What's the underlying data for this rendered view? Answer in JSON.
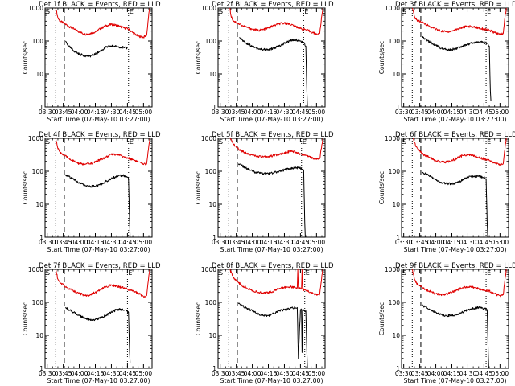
{
  "colors": {
    "events": "#000000",
    "lld": "#e00000",
    "axes": "#000000",
    "background": "#ffffff"
  },
  "common": {
    "ylabel": "Counts/sec",
    "xlabel": "Start Time (07-May-10 03:27:00)",
    "x_ticks": [
      "03:30",
      "03:45",
      "04:00",
      "04:15",
      "04:30",
      "04:45",
      "05:00"
    ],
    "y_ticks": [
      "1",
      "10",
      "100",
      "1000"
    ],
    "flag_S": "S",
    "flag_E": "E"
  },
  "chart_data": [
    {
      "type": "line",
      "title": "Det 1f BLACK = Events, RED = LLD",
      "x_unit": "minutes after 03:30",
      "xlim": [
        -2,
        98
      ],
      "ylim": [
        1,
        1000
      ],
      "yscale": "log",
      "markers": {
        "dotted": [
          8,
          76
        ],
        "dashed": 16
      },
      "series": [
        {
          "name": "LLD",
          "color": "red",
          "x": [
            8,
            10,
            12,
            16,
            20,
            25,
            30,
            35,
            40,
            45,
            50,
            55,
            60,
            65,
            70,
            72,
            75,
            80,
            85,
            90,
            93,
            95,
            96
          ],
          "y": [
            1000,
            500,
            400,
            340,
            280,
            230,
            190,
            160,
            170,
            190,
            240,
            290,
            320,
            300,
            260,
            250,
            240,
            180,
            140,
            130,
            150,
            700,
            1000
          ]
        },
        {
          "name": "Events",
          "color": "black",
          "x": [
            17,
            18,
            20,
            25,
            30,
            35,
            40,
            45,
            50,
            55,
            60,
            65,
            70,
            72,
            75
          ],
          "y": [
            100,
            90,
            70,
            50,
            40,
            36,
            35,
            40,
            50,
            65,
            70,
            68,
            65,
            62,
            60
          ]
        }
      ]
    },
    {
      "type": "line",
      "title": "Det 2f BLACK = Events, RED = LLD",
      "x_unit": "minutes after 03:30",
      "xlim": [
        -2,
        98
      ],
      "ylim": [
        1,
        1000
      ],
      "yscale": "log",
      "markers": {
        "dotted": [
          8,
          78
        ],
        "dashed": 16
      },
      "series": [
        {
          "name": "LLD",
          "color": "red",
          "x": [
            9,
            10,
            12,
            16,
            20,
            25,
            30,
            35,
            40,
            45,
            50,
            55,
            60,
            65,
            70,
            75,
            80,
            85,
            90,
            93,
            95,
            96
          ],
          "y": [
            1000,
            600,
            420,
            350,
            300,
            260,
            230,
            210,
            220,
            250,
            290,
            330,
            350,
            330,
            280,
            240,
            220,
            190,
            160,
            170,
            600,
            1000
          ]
        },
        {
          "name": "Events",
          "color": "black",
          "x": [
            18,
            20,
            25,
            30,
            35,
            40,
            45,
            50,
            55,
            60,
            65,
            70,
            75,
            78,
            80,
            81,
            81.5
          ],
          "y": [
            130,
            110,
            85,
            70,
            60,
            55,
            55,
            60,
            70,
            85,
            100,
            110,
            100,
            90,
            70,
            3,
            1
          ]
        }
      ]
    },
    {
      "type": "line",
      "title": "Det 3f BLACK = Events, RED = LLD",
      "x_unit": "minutes after 03:30",
      "xlim": [
        -2,
        98
      ],
      "ylim": [
        1,
        1000
      ],
      "yscale": "log",
      "markers": {
        "dotted": [
          8,
          77
        ],
        "dashed": 16
      },
      "series": [
        {
          "name": "LLD",
          "color": "red",
          "x": [
            8,
            10,
            12,
            16,
            20,
            25,
            30,
            35,
            40,
            45,
            50,
            55,
            60,
            65,
            70,
            75,
            80,
            85,
            90,
            93,
            95,
            96
          ],
          "y": [
            1000,
            550,
            440,
            380,
            330,
            270,
            230,
            200,
            190,
            200,
            230,
            260,
            280,
            270,
            250,
            230,
            210,
            180,
            160,
            170,
            650,
            1000
          ]
        },
        {
          "name": "Events",
          "color": "black",
          "x": [
            17,
            20,
            25,
            30,
            35,
            40,
            45,
            50,
            55,
            60,
            65,
            70,
            75,
            78,
            80,
            81,
            81.5
          ],
          "y": [
            130,
            115,
            90,
            75,
            60,
            55,
            55,
            60,
            70,
            80,
            90,
            95,
            90,
            85,
            70,
            3,
            1.5
          ]
        }
      ]
    },
    {
      "type": "line",
      "title": "Det 4f BLACK = Events, RED = LLD",
      "x_unit": "minutes after 03:30",
      "xlim": [
        -2,
        98
      ],
      "ylim": [
        1,
        1000
      ],
      "yscale": "log",
      "markers": {
        "dotted": [
          8,
          76
        ],
        "dashed": 16
      },
      "series": [
        {
          "name": "LLD",
          "color": "red",
          "x": [
            8,
            10,
            12,
            16,
            20,
            25,
            30,
            35,
            40,
            45,
            50,
            55,
            60,
            65,
            70,
            75,
            80,
            85,
            90,
            93,
            95,
            96
          ],
          "y": [
            1000,
            480,
            380,
            300,
            250,
            200,
            170,
            160,
            170,
            190,
            230,
            270,
            320,
            330,
            290,
            250,
            230,
            190,
            160,
            170,
            600,
            1000
          ]
        },
        {
          "name": "Events",
          "color": "black",
          "x": [
            17,
            20,
            25,
            30,
            35,
            40,
            45,
            50,
            55,
            60,
            65,
            70,
            74,
            76,
            77,
            77.5
          ],
          "y": [
            80,
            70,
            55,
            45,
            38,
            35,
            35,
            40,
            50,
            60,
            70,
            75,
            70,
            60,
            3,
            1
          ]
        }
      ]
    },
    {
      "type": "line",
      "title": "Det 5f BLACK = Events, RED = LLD",
      "x_unit": "minutes after 03:30",
      "xlim": [
        -2,
        98
      ],
      "ylim": [
        1,
        1000
      ],
      "yscale": "log",
      "markers": {
        "dotted": [
          8,
          76
        ],
        "dashed": 16
      },
      "series": [
        {
          "name": "LLD",
          "color": "red",
          "x": [
            9,
            12,
            16,
            20,
            25,
            30,
            35,
            40,
            45,
            50,
            55,
            60,
            65,
            70,
            75,
            80,
            85,
            90,
            93,
            95,
            96
          ],
          "y": [
            1000,
            700,
            500,
            420,
            350,
            310,
            280,
            270,
            280,
            300,
            330,
            370,
            400,
            380,
            330,
            300,
            260,
            230,
            240,
            650,
            1000
          ]
        },
        {
          "name": "Events",
          "color": "black",
          "x": [
            17,
            20,
            25,
            30,
            35,
            40,
            45,
            50,
            55,
            60,
            65,
            70,
            75,
            78,
            79,
            79.5
          ],
          "y": [
            170,
            150,
            120,
            100,
            90,
            85,
            85,
            90,
            100,
            110,
            120,
            130,
            125,
            110,
            3,
            1
          ]
        }
      ]
    },
    {
      "type": "line",
      "title": "Det 6f BLACK = Events, RED = LLD",
      "x_unit": "minutes after 03:30",
      "xlim": [
        -2,
        98
      ],
      "ylim": [
        1,
        1000
      ],
      "yscale": "log",
      "markers": {
        "dotted": [
          8,
          77
        ],
        "dashed": 16
      },
      "series": [
        {
          "name": "LLD",
          "color": "red",
          "x": [
            9,
            11,
            14,
            17,
            20,
            25,
            30,
            35,
            40,
            45,
            50,
            55,
            60,
            65,
            70,
            75,
            80,
            85,
            90,
            93,
            95,
            96
          ],
          "y": [
            1000,
            600,
            450,
            350,
            300,
            260,
            210,
            190,
            190,
            210,
            250,
            300,
            320,
            300,
            260,
            240,
            210,
            180,
            160,
            170,
            650,
            1000
          ]
        },
        {
          "name": "Events",
          "color": "black",
          "x": [
            17,
            20,
            25,
            30,
            35,
            40,
            45,
            50,
            55,
            60,
            65,
            70,
            75,
            77,
            78,
            78.5
          ],
          "y": [
            90,
            85,
            70,
            55,
            45,
            42,
            42,
            45,
            55,
            65,
            70,
            70,
            65,
            60,
            3,
            1
          ]
        }
      ]
    },
    {
      "type": "line",
      "title": "Det 7f BLACK = Events, RED = LLD",
      "x_unit": "minutes after 03:30",
      "xlim": [
        -2,
        98
      ],
      "ylim": [
        1,
        1000
      ],
      "yscale": "log",
      "markers": {
        "dotted": [
          8,
          75
        ],
        "dashed": 16
      },
      "series": [
        {
          "name": "LLD",
          "color": "red",
          "x": [
            8,
            10,
            12,
            16,
            20,
            25,
            30,
            35,
            40,
            45,
            50,
            55,
            60,
            65,
            70,
            75,
            80,
            85,
            90,
            93,
            95,
            96
          ],
          "y": [
            1000,
            500,
            390,
            320,
            260,
            220,
            190,
            160,
            170,
            200,
            240,
            300,
            330,
            310,
            280,
            250,
            230,
            190,
            150,
            160,
            650,
            1000
          ]
        },
        {
          "name": "Events",
          "color": "black",
          "x": [
            17,
            20,
            25,
            30,
            35,
            40,
            45,
            50,
            55,
            60,
            65,
            70,
            74,
            76,
            77,
            77.5
          ],
          "y": [
            70,
            60,
            50,
            40,
            33,
            30,
            30,
            35,
            40,
            50,
            60,
            60,
            55,
            50,
            3,
            1.5
          ]
        }
      ]
    },
    {
      "type": "line",
      "title": "Det 8f BLACK = Events, RED = LLD",
      "x_unit": "minutes after 03:30",
      "xlim": [
        -2,
        98
      ],
      "ylim": [
        1,
        1000
      ],
      "yscale": "log",
      "markers": {
        "dotted": [
          8,
          79
        ],
        "dashed": 16
      },
      "series": [
        {
          "name": "LLD",
          "color": "red",
          "x": [
            9,
            12,
            16,
            20,
            25,
            30,
            35,
            40,
            45,
            50,
            55,
            60,
            65,
            70,
            72,
            72.5,
            73,
            75,
            76,
            76.5,
            77,
            80,
            85,
            90,
            93,
            95,
            96
          ],
          "y": [
            1000,
            600,
            430,
            330,
            270,
            230,
            200,
            190,
            200,
            220,
            260,
            290,
            300,
            280,
            270,
            1000,
            270,
            260,
            250,
            1000,
            250,
            230,
            200,
            170,
            180,
            650,
            1000
          ]
        },
        {
          "name": "Events",
          "color": "black",
          "x": [
            17,
            20,
            25,
            30,
            35,
            40,
            45,
            50,
            55,
            60,
            65,
            70,
            72,
            73,
            75,
            76,
            76.5,
            77,
            80,
            81,
            81.5
          ],
          "y": [
            90,
            80,
            65,
            55,
            45,
            40,
            40,
            45,
            55,
            60,
            65,
            70,
            70,
            2,
            60,
            60,
            3,
            60,
            55,
            3,
            1
          ]
        }
      ]
    },
    {
      "type": "line",
      "title": "Det 9f BLACK = Events, RED = LLD",
      "x_unit": "minutes after 03:30",
      "xlim": [
        -2,
        98
      ],
      "ylim": [
        1,
        1000
      ],
      "yscale": "log",
      "markers": {
        "dotted": [
          8,
          77
        ],
        "dashed": 16
      },
      "series": [
        {
          "name": "LLD",
          "color": "red",
          "x": [
            8,
            10,
            12,
            16,
            20,
            25,
            30,
            35,
            40,
            45,
            50,
            55,
            60,
            65,
            70,
            75,
            80,
            85,
            90,
            93,
            95,
            96
          ],
          "y": [
            1000,
            500,
            380,
            300,
            250,
            210,
            180,
            170,
            180,
            200,
            240,
            280,
            300,
            290,
            260,
            240,
            220,
            180,
            160,
            170,
            600,
            1000
          ]
        },
        {
          "name": "Events",
          "color": "black",
          "x": [
            17,
            20,
            25,
            30,
            35,
            40,
            45,
            50,
            55,
            60,
            65,
            70,
            75,
            78,
            79,
            79.5
          ],
          "y": [
            80,
            75,
            60,
            50,
            42,
            40,
            40,
            42,
            50,
            60,
            65,
            70,
            65,
            60,
            3,
            1
          ]
        }
      ]
    }
  ]
}
